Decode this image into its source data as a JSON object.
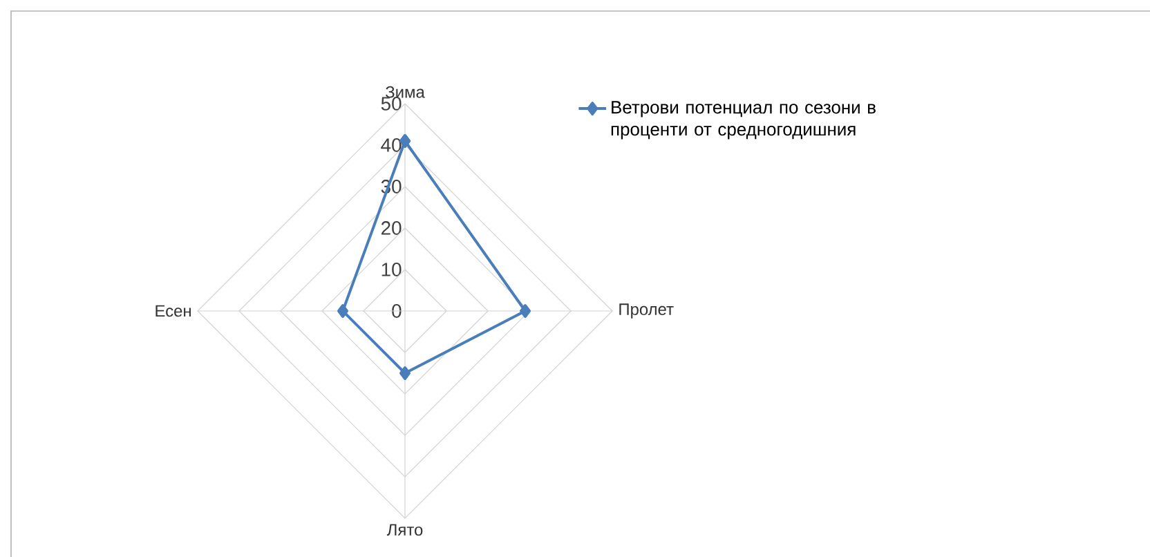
{
  "chart_data": {
    "type": "radar",
    "categories": [
      "Зима",
      "Пролет",
      "Лято",
      "Есен"
    ],
    "series": [
      {
        "name": "Ветрови потенциал по сезони в проценти от средногодишния",
        "color": "#4a7ebb",
        "values": [
          41,
          29,
          15,
          15
        ]
      }
    ],
    "ylim": [
      0,
      50
    ],
    "yticks": [
      0,
      10,
      20,
      30,
      40,
      50
    ],
    "grid": true,
    "legend": "top right",
    "marker": "diamond",
    "line_style": "solid"
  }
}
